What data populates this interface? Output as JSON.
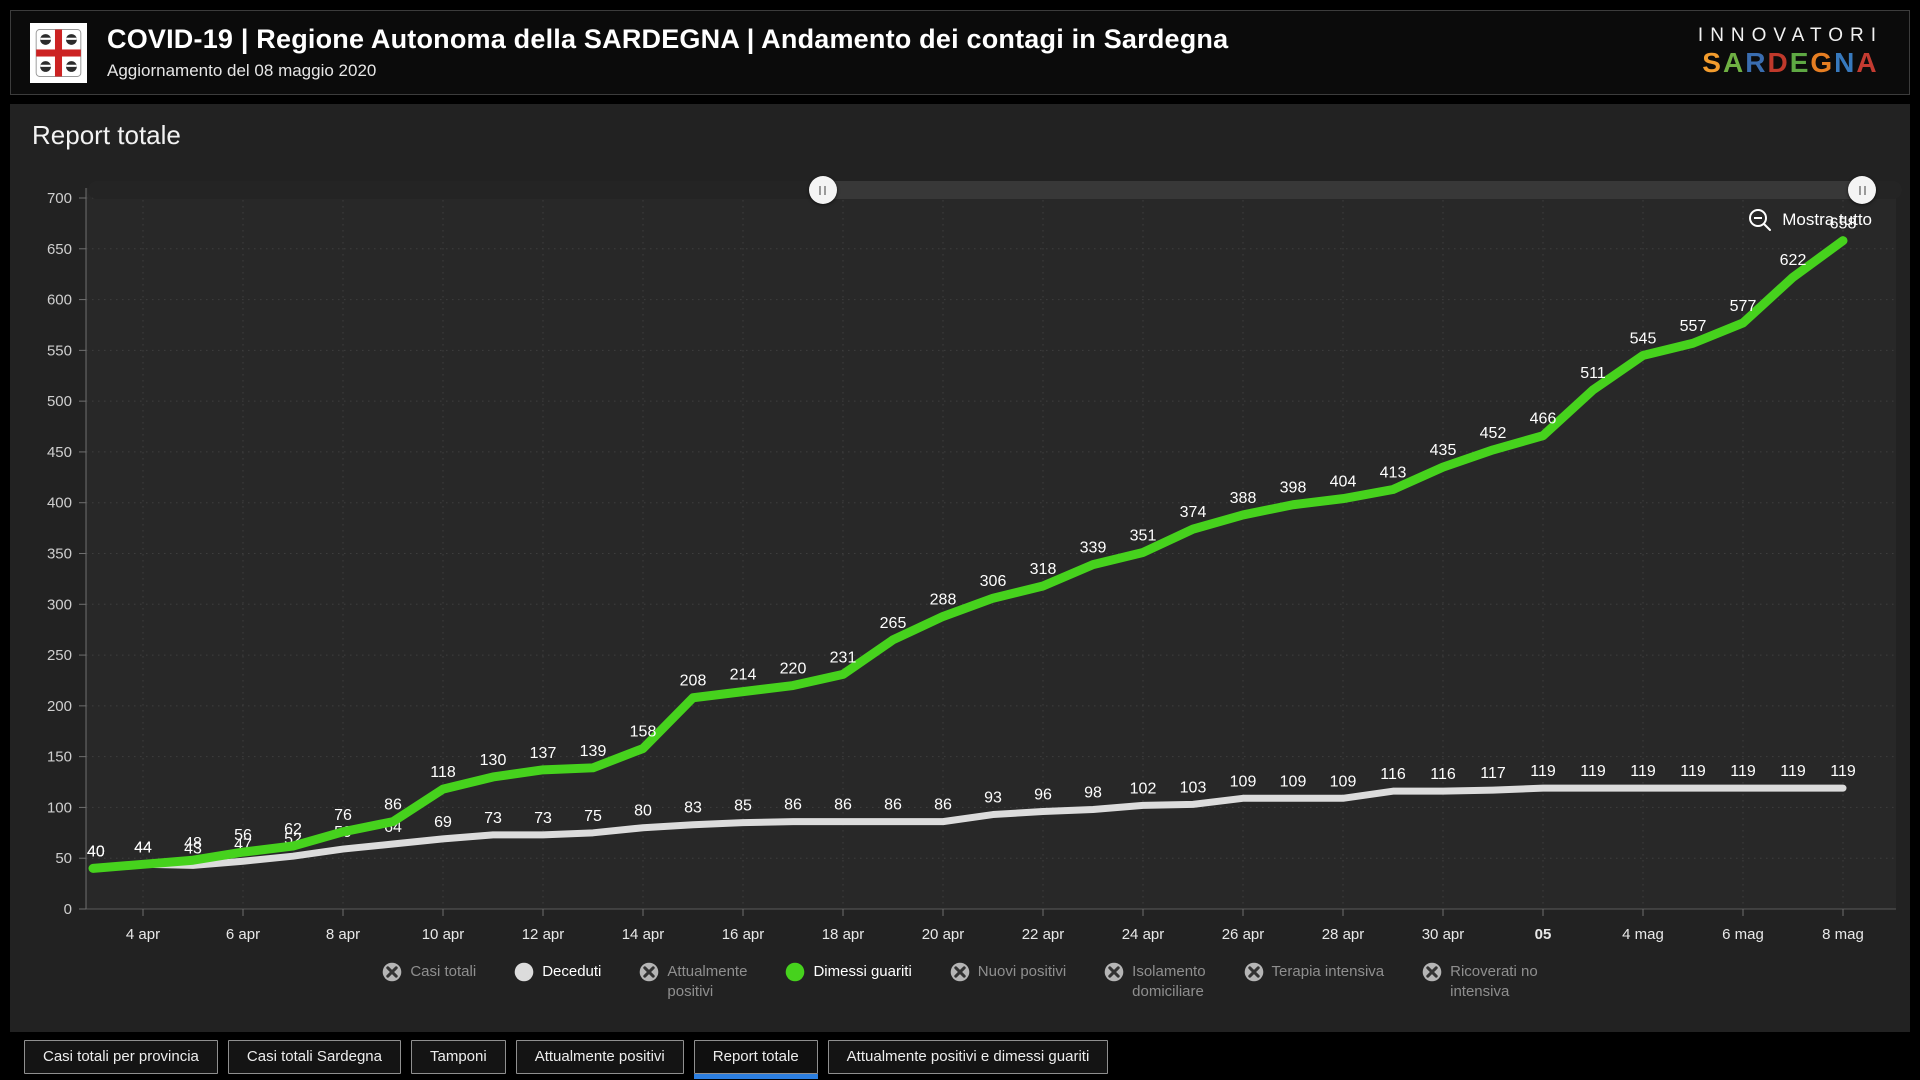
{
  "header": {
    "title": "COVID-19 | Regione Autonoma della SARDEGNA | Andamento dei contagi in Sardegna",
    "subtitle": "Aggiornamento del 08 maggio 2020",
    "brand_line1": "INNOVATORI",
    "brand_line2": [
      {
        "ch": "S",
        "color": "#f39c2d"
      },
      {
        "ch": "A",
        "color": "#6fb043"
      },
      {
        "ch": "R",
        "color": "#3a6db0"
      },
      {
        "ch": "D",
        "color": "#c0392b"
      },
      {
        "ch": "E",
        "color": "#5ea843"
      },
      {
        "ch": "G",
        "color": "#e67e22"
      },
      {
        "ch": "N",
        "color": "#3779bd"
      },
      {
        "ch": "A",
        "color": "#c43b31"
      }
    ]
  },
  "panel": {
    "title": "Report totale",
    "show_all_label": "Mostra tutto"
  },
  "chart_data": {
    "type": "line",
    "title": "Report totale",
    "ylim": [
      0,
      700
    ],
    "y_ticks": [
      0,
      50,
      100,
      150,
      200,
      250,
      300,
      350,
      400,
      450,
      500,
      550,
      600,
      650,
      700
    ],
    "x_tick_labels": [
      "4 apr",
      "6 apr",
      "8 apr",
      "10 apr",
      "12 apr",
      "14 apr",
      "16 apr",
      "18 apr",
      "20 apr",
      "22 apr",
      "24 apr",
      "26 apr",
      "28 apr",
      "30 apr",
      "05",
      "4 mag",
      "6 mag",
      "8 mag"
    ],
    "x_tick_bold_index": 14,
    "first_tick_point_index": 1,
    "points_per_tick": 2,
    "grid": "dotted",
    "legend_position": "bottom",
    "series": [
      {
        "name": "Deceduti",
        "color": "#dcdcdc",
        "values": [
          40,
          44,
          43,
          47,
          52,
          59,
          64,
          69,
          73,
          73,
          75,
          80,
          83,
          85,
          86,
          86,
          86,
          86,
          93,
          96,
          98,
          102,
          103,
          109,
          109,
          109,
          116,
          116,
          117,
          119,
          119,
          119,
          119,
          119,
          119,
          119
        ]
      },
      {
        "name": "Dimessi guariti",
        "color": "#46d21d",
        "values": [
          40,
          44,
          48,
          56,
          62,
          76,
          86,
          118,
          130,
          137,
          139,
          158,
          208,
          214,
          220,
          231,
          265,
          288,
          306,
          318,
          339,
          351,
          374,
          388,
          398,
          404,
          413,
          435,
          452,
          466,
          511,
          545,
          557,
          577,
          622,
          658
        ]
      }
    ]
  },
  "legend": {
    "items": [
      {
        "label": "Casi totali",
        "enabled": false
      },
      {
        "label": "Deceduti",
        "enabled": true,
        "color": "#dcdcdc"
      },
      {
        "label": "Attualmente\npositivi",
        "enabled": false
      },
      {
        "label": "Dimessi guariti",
        "enabled": true,
        "color": "#46d21d"
      },
      {
        "label": "Nuovi positivi",
        "enabled": false
      },
      {
        "label": "Isolamento\ndomiciliare",
        "enabled": false
      },
      {
        "label": "Terapia intensiva",
        "enabled": false
      },
      {
        "label": "Ricoverati no\nintensiva",
        "enabled": false
      }
    ],
    "disabled_icon": "x-circle",
    "disabled_circle_color": "#b5b5b5"
  },
  "slider": {
    "left_percent": 40.5,
    "right_percent": 97.8
  },
  "tabs": {
    "active_index": 4,
    "items": [
      "Casi totali per provincia",
      "Casi totali Sardegna",
      "Tamponi",
      "Attualmente positivi",
      "Report totale",
      "Attualmente positivi e dimessi guariti"
    ]
  },
  "colors": {
    "accent_green": "#46d21d",
    "line_white": "#dcdcdc",
    "tab_active_underline": "#2d7fe0",
    "grid_line": "#3e3e3e",
    "axis_line": "#6f6f6f"
  }
}
